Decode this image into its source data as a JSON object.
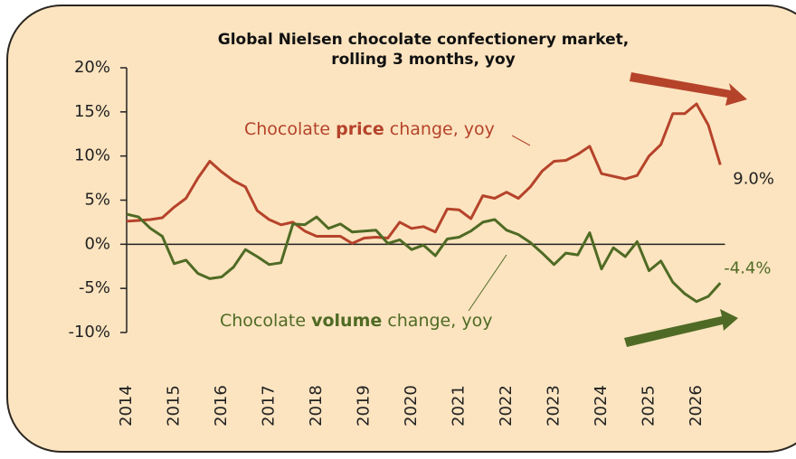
{
  "chart_data": {
    "type": "line",
    "title": [
      "Global Nielsen chocolate confectionery market,",
      "rolling 3 months, yoy"
    ],
    "x": [
      2014,
      2014.25,
      2014.5,
      2014.75,
      2015,
      2015.25,
      2015.5,
      2015.75,
      2016,
      2016.25,
      2016.5,
      2016.75,
      2017,
      2017.25,
      2017.5,
      2017.75,
      2018,
      2018.25,
      2018.5,
      2018.75,
      2019,
      2019.25,
      2019.5,
      2019.75,
      2020,
      2020.25,
      2020.5,
      2020.75,
      2021,
      2021.25,
      2021.5,
      2021.75,
      2022,
      2022.25,
      2022.5,
      2022.75,
      2023,
      2023.25,
      2023.5,
      2023.75,
      2024,
      2024.25,
      2024.5,
      2024.75,
      2025,
      2025.25,
      2025.5,
      2025.75,
      2026,
      2026.25,
      2026.5
    ],
    "series": [
      {
        "name": [
          "Chocolate ",
          "price",
          " change, yoy"
        ],
        "color": "#b5432a",
        "end_label": "9.0%",
        "values": [
          2.6,
          2.7,
          2.8,
          3.0,
          4.2,
          5.2,
          7.5,
          9.4,
          8.2,
          7.2,
          6.5,
          3.8,
          2.8,
          2.2,
          2.5,
          1.5,
          0.9,
          0.9,
          0.9,
          0.1,
          0.7,
          0.8,
          0.7,
          2.5,
          1.8,
          2.0,
          1.4,
          4.0,
          3.9,
          2.9,
          5.5,
          5.2,
          5.9,
          5.2,
          6.5,
          8.3,
          9.4,
          9.5,
          10.2,
          11.1,
          8.0,
          7.7,
          7.4,
          7.8,
          10.0,
          11.3,
          14.8,
          14.8,
          15.9,
          13.5,
          9.0
        ]
      },
      {
        "name": [
          "Chocolate ",
          "volume",
          " change, yoy"
        ],
        "color": "#4f6a24",
        "end_label": "-4.4%",
        "values": [
          3.4,
          3.1,
          1.8,
          0.9,
          -2.2,
          -1.8,
          -3.3,
          -3.9,
          -3.7,
          -2.6,
          -0.6,
          -1.4,
          -2.3,
          -2.1,
          2.3,
          2.2,
          3.1,
          1.8,
          2.3,
          1.4,
          1.5,
          1.6,
          0.1,
          0.5,
          -0.6,
          -0.1,
          -1.3,
          0.6,
          0.8,
          1.5,
          2.5,
          2.8,
          1.6,
          1.1,
          0.2,
          -1.0,
          -2.3,
          -1.0,
          -1.2,
          1.3,
          -2.8,
          -0.4,
          -1.4,
          0.3,
          -3.0,
          -1.9,
          -4.3,
          -5.6,
          -6.5,
          -5.9,
          -4.4
        ]
      }
    ],
    "xlim": [
      2014,
      2026.6
    ],
    "xticks": [
      2014,
      2015,
      2016,
      2017,
      2018,
      2019,
      2020,
      2021,
      2022,
      2023,
      2024,
      2025,
      2026
    ],
    "ylim": [
      -10,
      20
    ],
    "yticks": [
      {
        "value": -10,
        "label": "-10%"
      },
      {
        "value": -5,
        "label": "-5%"
      },
      {
        "value": 0,
        "label": "0%"
      },
      {
        "value": 5,
        "label": "5%"
      },
      {
        "value": 10,
        "label": "10%"
      },
      {
        "value": 15,
        "label": "15%"
      },
      {
        "value": 20,
        "label": "20%"
      }
    ]
  }
}
